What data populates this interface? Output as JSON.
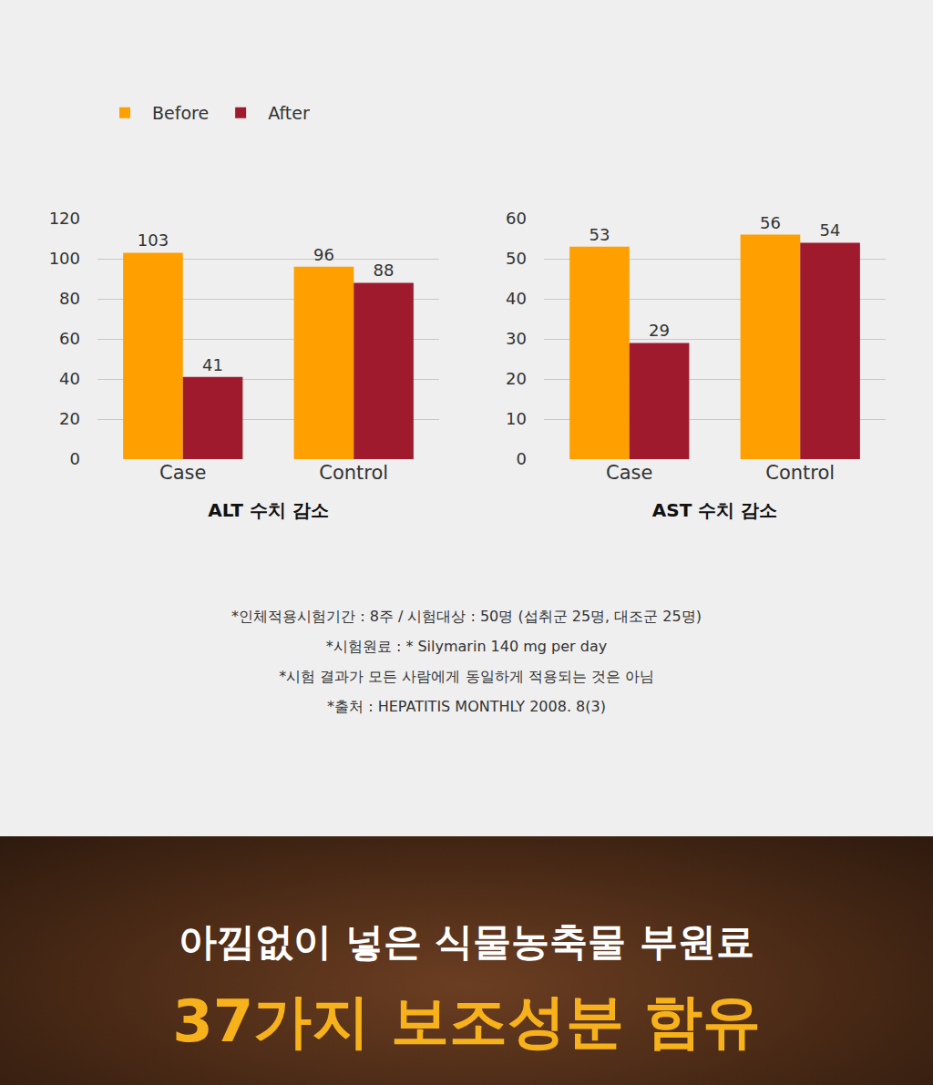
{
  "chart_data": [
    {
      "type": "bar",
      "title": "ALT 수치 감소",
      "categories": [
        "Case",
        "Control"
      ],
      "series": [
        {
          "name": "Before",
          "color": "#ffa000",
          "values": [
            103,
            96
          ]
        },
        {
          "name": "After",
          "color": "#9e1a2c",
          "values": [
            41,
            88
          ]
        }
      ],
      "ylim": [
        0,
        120
      ],
      "yticks": [
        0,
        20,
        40,
        60,
        80,
        100,
        120
      ],
      "grid": true,
      "data_labels": true,
      "legend": "top-left"
    },
    {
      "type": "bar",
      "title": "AST 수치 감소",
      "categories": [
        "Case",
        "Control"
      ],
      "series": [
        {
          "name": "Before",
          "color": "#ffa000",
          "values": [
            53,
            56
          ]
        },
        {
          "name": "After",
          "color": "#9e1a2c",
          "values": [
            29,
            54
          ]
        }
      ],
      "ylim": [
        0,
        60
      ],
      "yticks": [
        0,
        10,
        20,
        30,
        40,
        50,
        60
      ],
      "grid": true,
      "data_labels": true
    }
  ],
  "notes": [
    "*인체적용시험기간 : 8주 / 시험대상 : 50명 (섭취군 25명, 대조군 25명)",
    "*시험원료 : * Silymarin 140 mg per day",
    "*시험 결과가 모든 사람에게 동일하게 적용되는 것은 아님",
    "*출처 : HEPATITIS MONTHLY 2008. 8(3)"
  ],
  "banner": {
    "line1": "아낌없이 넣은 식물농축물 부원료",
    "line2": "37가지 보조성분 함유"
  }
}
